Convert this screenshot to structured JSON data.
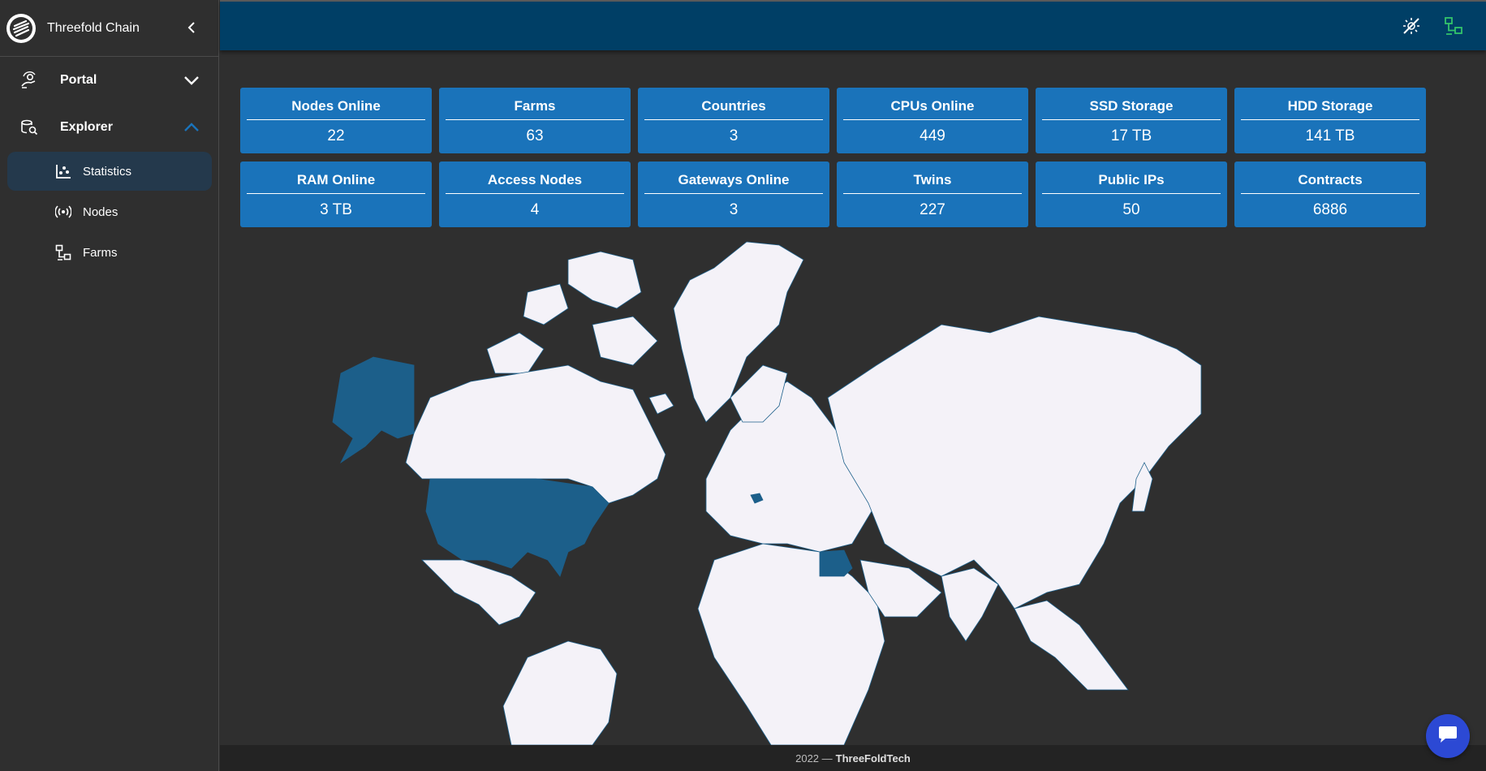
{
  "app": {
    "title": "Threefold Chain"
  },
  "sidebar": {
    "groups": [
      {
        "label": "Portal",
        "icon": "portal-icon",
        "expanded": false
      },
      {
        "label": "Explorer",
        "icon": "explorer-icon",
        "expanded": true,
        "items": [
          {
            "label": "Statistics",
            "icon": "statistics-icon",
            "active": true
          },
          {
            "label": "Nodes",
            "icon": "nodes-icon",
            "active": false
          },
          {
            "label": "Farms",
            "icon": "farms-icon",
            "active": false
          }
        ]
      }
    ]
  },
  "topbar": {
    "icons": [
      "theme-toggle-icon",
      "network-icon"
    ],
    "network_icon_color": "#33c46b"
  },
  "stats": [
    {
      "label": "Nodes Online",
      "value": "22"
    },
    {
      "label": "Farms",
      "value": "63"
    },
    {
      "label": "Countries",
      "value": "3"
    },
    {
      "label": "CPUs Online",
      "value": "449"
    },
    {
      "label": "SSD Storage",
      "value": "17 TB"
    },
    {
      "label": "HDD Storage",
      "value": "141 TB"
    },
    {
      "label": "RAM Online",
      "value": "3 TB"
    },
    {
      "label": "Access Nodes",
      "value": "4"
    },
    {
      "label": "Gateways Online",
      "value": "3"
    },
    {
      "label": "Twins",
      "value": "227"
    },
    {
      "label": "Public IPs",
      "value": "50"
    },
    {
      "label": "Contracts",
      "value": "6886"
    }
  ],
  "map": {
    "highlighted_countries": [
      "United States",
      "Belgium",
      "Egypt"
    ],
    "land_color": "#f4f2f8",
    "highlight_color": "#1c5f8a"
  },
  "footer": {
    "year": "2022 —",
    "company": "ThreeFoldTech"
  },
  "colors": {
    "card": "#1a73ba",
    "topbar": "#003f66",
    "sidebar_active": "#24394c",
    "chat": "#2c49d4"
  }
}
